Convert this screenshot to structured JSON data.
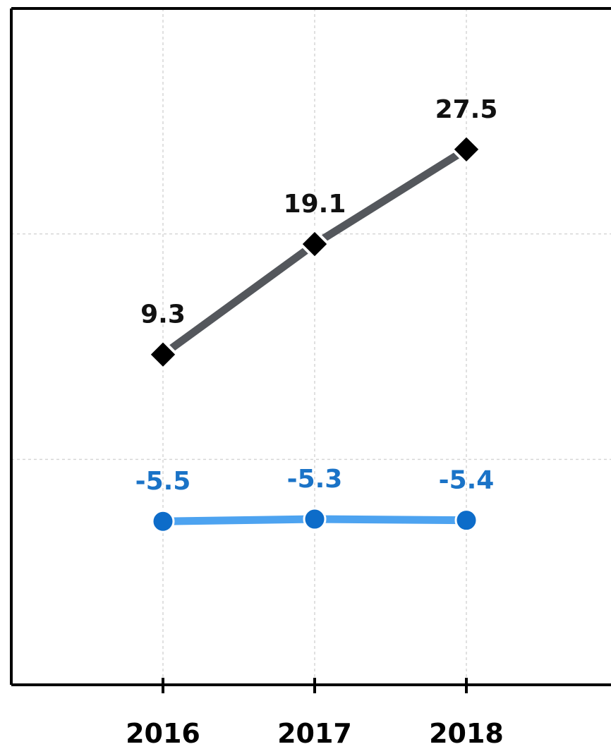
{
  "chart_data": {
    "type": "line",
    "categories": [
      "2016",
      "2017",
      "2018"
    ],
    "series": [
      {
        "values": [
          9.3,
          19.1,
          27.5
        ],
        "line_color": "#54575c",
        "marker_color": "#000000",
        "label_color": "#111111",
        "marker": "diamond"
      },
      {
        "values": [
          -5.5,
          -5.3,
          -5.4
        ],
        "line_color": "#4da3f0",
        "marker_color": "#0d6cc9",
        "label_color": "#1a73c7",
        "marker": "circle"
      }
    ],
    "ylim": [
      -20,
      40
    ],
    "grid": true,
    "title": "",
    "xlabel": "",
    "ylabel": ""
  }
}
